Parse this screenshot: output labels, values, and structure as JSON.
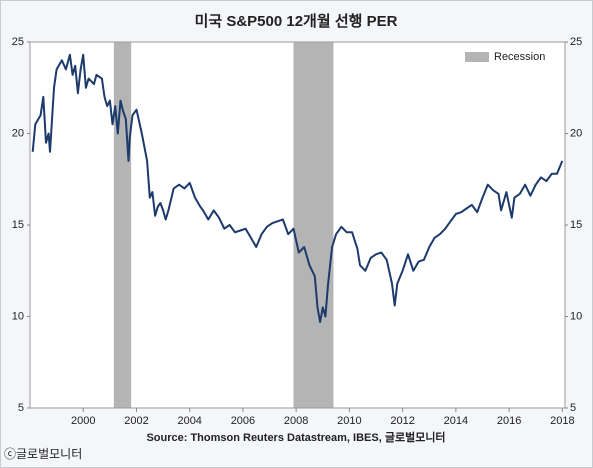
{
  "chart_data": {
    "type": "line",
    "title": "미국 S&P500 12개월 선행 PER",
    "source": "Source: Thomson Reuters Datastream, IBES, 글로벌모니터",
    "copyright": "ⓒ글로벌모니터",
    "x": [
      1998.1,
      1998.2,
      1998.4,
      1998.5,
      1998.6,
      1998.7,
      1998.75,
      1998.9,
      1999.0,
      1999.2,
      1999.35,
      1999.5,
      1999.6,
      1999.7,
      1999.8,
      1999.9,
      2000.0,
      2000.1,
      2000.2,
      2000.4,
      2000.5,
      2000.7,
      2000.8,
      2000.9,
      2001.0,
      2001.1,
      2001.2,
      2001.3,
      2001.4,
      2001.5,
      2001.6,
      2001.7,
      2001.75,
      2001.85,
      2002.0,
      2002.2,
      2002.4,
      2002.5,
      2002.6,
      2002.7,
      2002.8,
      2002.9,
      2003.0,
      2003.1,
      2003.2,
      2003.4,
      2003.6,
      2003.8,
      2004.0,
      2004.2,
      2004.4,
      2004.5,
      2004.7,
      2004.9,
      2005.1,
      2005.3,
      2005.5,
      2005.7,
      2005.9,
      2006.1,
      2006.3,
      2006.5,
      2006.7,
      2006.9,
      2007.1,
      2007.3,
      2007.5,
      2007.7,
      2007.9,
      2008.1,
      2008.3,
      2008.5,
      2008.7,
      2008.8,
      2008.9,
      2009.0,
      2009.1,
      2009.2,
      2009.35,
      2009.5,
      2009.7,
      2009.9,
      2010.1,
      2010.3,
      2010.4,
      2010.6,
      2010.8,
      2011.0,
      2011.2,
      2011.4,
      2011.6,
      2011.7,
      2011.8,
      2012.0,
      2012.2,
      2012.4,
      2012.6,
      2012.8,
      2013.0,
      2013.2,
      2013.4,
      2013.6,
      2013.8,
      2014.0,
      2014.2,
      2014.4,
      2014.6,
      2014.8,
      2015.0,
      2015.2,
      2015.4,
      2015.6,
      2015.7,
      2015.9,
      2016.1,
      2016.2,
      2016.4,
      2016.6,
      2016.8,
      2017.0,
      2017.2,
      2017.4,
      2017.6,
      2017.8,
      2018.0
    ],
    "values": [
      19,
      20.5,
      21,
      22,
      19.5,
      20,
      19,
      22.5,
      23.5,
      24,
      23.5,
      24.3,
      23.2,
      23.7,
      22.2,
      23.5,
      24.3,
      22.5,
      23,
      22.7,
      23.2,
      23,
      22,
      21.5,
      21.8,
      20.5,
      21.5,
      20,
      21.8,
      21.2,
      20.8,
      18.5,
      19.8,
      21,
      21.3,
      20,
      18.5,
      16.5,
      16.8,
      15.5,
      16,
      16.2,
      15.8,
      15.3,
      15.8,
      17,
      17.2,
      17,
      17.3,
      16.5,
      16,
      15.8,
      15.3,
      15.8,
      15.4,
      14.8,
      15,
      14.6,
      14.7,
      14.8,
      14.3,
      13.8,
      14.5,
      14.9,
      15.1,
      15.2,
      15.3,
      14.5,
      14.8,
      13.5,
      13.8,
      12.8,
      12.2,
      10.5,
      9.7,
      10.5,
      10,
      11.8,
      13.8,
      14.5,
      14.9,
      14.6,
      14.6,
      13.7,
      12.8,
      12.5,
      13.2,
      13.4,
      13.5,
      13.1,
      11.8,
      10.6,
      11.8,
      12.5,
      13.4,
      12.5,
      13,
      13.1,
      13.8,
      14.3,
      14.5,
      14.8,
      15.2,
      15.6,
      15.7,
      15.9,
      16.1,
      15.7,
      16.5,
      17.2,
      16.9,
      16.7,
      15.8,
      16.8,
      15.4,
      16.5,
      16.7,
      17.2,
      16.6,
      17.2,
      17.6,
      17.4,
      17.8,
      17.8,
      18.5
    ],
    "color": "#1c3a6b",
    "bands": {
      "name": "Recession",
      "color": "#b4b4b4",
      "ranges": [
        [
          2001.15,
          2001.8
        ],
        [
          2007.9,
          2009.4
        ]
      ]
    },
    "legend": "top-right",
    "xlim": [
      1998,
      2018.1
    ],
    "xticks": [
      2000,
      2002,
      2004,
      2006,
      2008,
      2010,
      2012,
      2014,
      2016,
      2018
    ],
    "ylim": [
      5,
      25
    ],
    "yticks": [
      5,
      10,
      15,
      20,
      25
    ],
    "y2lim": [
      5,
      25
    ],
    "y2ticks": [
      5,
      10,
      15,
      20,
      25
    ]
  }
}
